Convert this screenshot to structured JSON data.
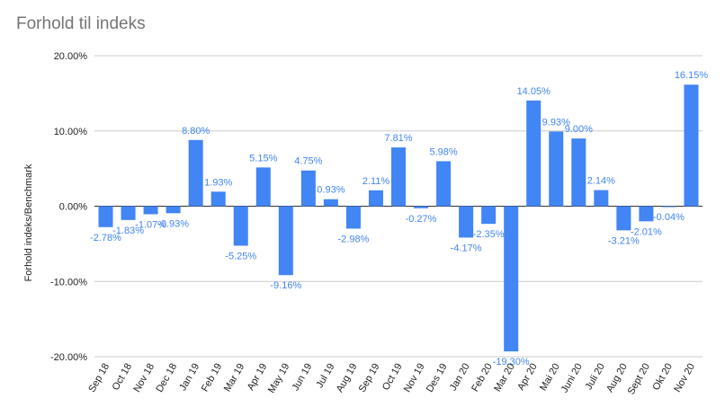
{
  "chart_data": {
    "type": "bar",
    "title": "Forhold til indeks",
    "ylabel": "Forhold indeks/Benchmark",
    "xlabel": "",
    "ylim": [
      -20,
      20
    ],
    "yticks": [
      "20.00%",
      "10.00%",
      "0.00%",
      "-10.00%",
      "-20.00%"
    ],
    "yticks_values": [
      20,
      10,
      0,
      -10,
      -20
    ],
    "grid": true,
    "bar_color": "#4285f4",
    "categories": [
      "Sep 18",
      "Oct 18",
      "Nov 18",
      "Dec 18",
      "Jan 19",
      "Feb 19",
      "Mar 19",
      "Apr 19",
      "May 19",
      "Jun 19",
      "Jul 19",
      "Aug 19",
      "Sep 19",
      "Oct 19",
      "Nov 19",
      "Des 19",
      "Jan 20",
      "Feb 20",
      "Mar 20",
      "Apr 20",
      "Mai 20",
      "Juni 20",
      "Juli 20",
      "Aug 20",
      "Sept 20",
      "Okt 20",
      "Nov 20"
    ],
    "values": [
      -2.78,
      -1.83,
      -1.07,
      -0.93,
      8.8,
      1.93,
      -5.25,
      5.15,
      -9.16,
      4.75,
      0.93,
      -2.98,
      2.11,
      7.81,
      -0.27,
      5.98,
      -4.17,
      -2.35,
      -19.3,
      14.05,
      9.93,
      9.0,
      2.14,
      -3.21,
      -2.01,
      -0.04,
      16.15
    ],
    "labels": [
      "-2.78%",
      "-1.83%",
      "-1.07%",
      "-0.93%",
      "8.80%",
      "1.93%",
      "-5.25%",
      "5.15%",
      "-9.16%",
      "4.75%",
      "0.93%",
      "-2.98%",
      "2.11%",
      "7.81%",
      "-0.27%",
      "5.98%",
      "-4.17%",
      "-2.35%",
      "-19.30%",
      "14.05%",
      "9.93%",
      "9.00%",
      "2.14%",
      "-3.21%",
      "-2.01%",
      "-0.04%",
      "16.15%"
    ]
  }
}
